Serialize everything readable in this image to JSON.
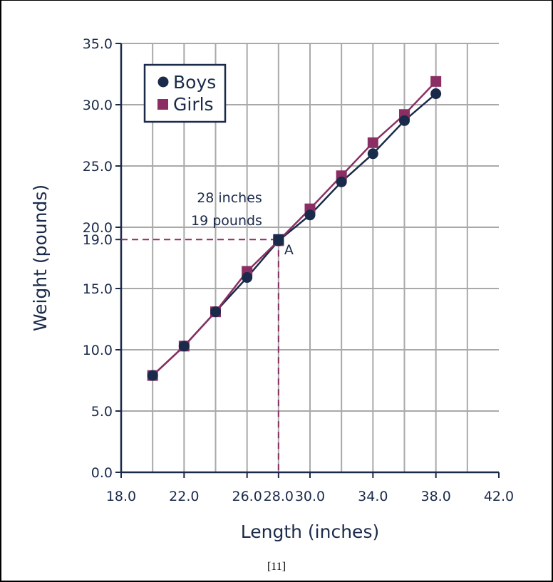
{
  "chart_data": {
    "type": "line",
    "title": "",
    "xlabel": "Length (inches)",
    "ylabel": "Weight (pounds)",
    "xlim": [
      18.0,
      42.0
    ],
    "ylim": [
      0.0,
      35.0
    ],
    "x_ticks": [
      "18.0",
      "22.0",
      "26.0",
      "28.0",
      "30.0",
      "34.0",
      "38.0",
      "42.0"
    ],
    "x_tick_values": [
      18,
      22,
      26,
      28,
      30,
      34,
      38,
      42
    ],
    "y_ticks": [
      "0.0",
      "5.0",
      "10.0",
      "15.0",
      "19.0",
      "20.0",
      "25.0",
      "30.0",
      "35.0"
    ],
    "y_tick_values": [
      0,
      5,
      10,
      15,
      19,
      20,
      25,
      30,
      35
    ],
    "grid": true,
    "legend": "top-left",
    "series": [
      {
        "name": "Boys",
        "marker": "circle",
        "color": "#1a2a4a",
        "x": [
          20,
          22,
          24,
          26,
          28,
          30,
          32,
          34,
          36,
          38
        ],
        "y": [
          7.9,
          10.3,
          13.1,
          15.9,
          18.9,
          21.0,
          23.7,
          26.0,
          28.7,
          30.9
        ]
      },
      {
        "name": "Girls",
        "marker": "square",
        "color": "#8b2e63",
        "x": [
          20,
          22,
          24,
          26,
          28,
          30,
          32,
          34,
          36,
          38
        ],
        "y": [
          7.9,
          10.3,
          13.1,
          16.4,
          18.9,
          21.5,
          24.2,
          26.9,
          29.2,
          31.9
        ]
      }
    ],
    "annotation": {
      "label": "A",
      "lines": [
        "28 inches",
        "19 pounds"
      ],
      "x": 28,
      "y": 19,
      "color": "#8b2e63"
    }
  },
  "caption": "[11]"
}
